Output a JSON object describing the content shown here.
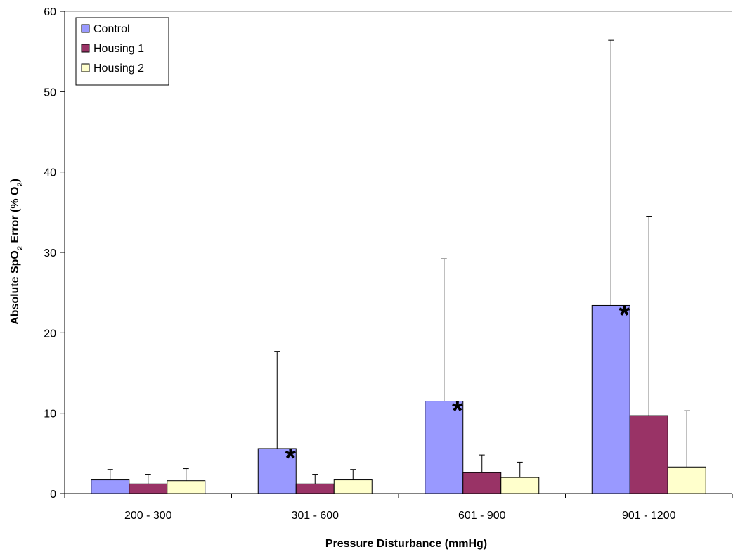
{
  "chart_data": {
    "type": "bar",
    "title": "",
    "xlabel": "Pressure Disturbance (mmHg)",
    "ylabel": "Absolute SpO2 Error (% O2)",
    "ylabel_parts": [
      "Absolute SpO",
      "2",
      " Error (% O",
      "2",
      ")"
    ],
    "ylim": [
      0,
      60
    ],
    "yticks": [
      0,
      10,
      20,
      30,
      40,
      50,
      60
    ],
    "categories": [
      "200 - 300",
      "301 - 600",
      "601 - 900",
      "901 - 1200"
    ],
    "series": [
      {
        "name": "Control",
        "color": "#9999ff",
        "values": [
          1.7,
          5.6,
          11.5,
          23.4
        ],
        "err_plus": [
          1.3,
          12.1,
          17.7,
          33.0
        ]
      },
      {
        "name": "Housing 1",
        "color": "#993366",
        "values": [
          1.2,
          1.2,
          2.6,
          9.7
        ],
        "err_plus": [
          1.2,
          1.2,
          2.2,
          24.8
        ]
      },
      {
        "name": "Housing 2",
        "color": "#ffffcc",
        "values": [
          1.6,
          1.7,
          2.0,
          3.3
        ],
        "err_plus": [
          1.5,
          1.3,
          1.9,
          7.0
        ]
      }
    ],
    "annotations": [
      {
        "category": "301 - 600",
        "series": "Control",
        "text": "*"
      },
      {
        "category": "601 - 900",
        "series": "Control",
        "text": "*"
      },
      {
        "category": "901 - 1200",
        "series": "Control",
        "text": "*"
      }
    ],
    "error_bars": "upper",
    "grid": false,
    "legend": "top-left"
  }
}
